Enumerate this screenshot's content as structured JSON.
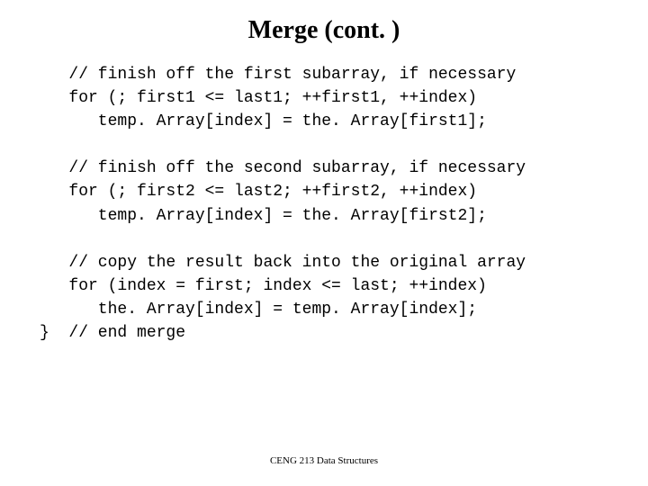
{
  "slide": {
    "title": "Merge (cont. )",
    "code": "   // finish off the first subarray, if necessary\n   for (; first1 <= last1; ++first1, ++index)\n      temp. Array[index] = the. Array[first1];\n\n   // finish off the second subarray, if necessary\n   for (; first2 <= last2; ++first2, ++index)\n      temp. Array[index] = the. Array[first2];\n\n   // copy the result back into the original array\n   for (index = first; index <= last; ++index)\n      the. Array[index] = temp. Array[index];\n}  // end merge",
    "footer": "CENG 213 Data Structures"
  },
  "styles": {
    "background_color": "#ffffff",
    "text_color": "#000000",
    "title_fontsize": 28,
    "title_fontweight": "bold",
    "title_fontfamily": "Times New Roman",
    "code_fontsize": 18,
    "code_fontfamily": "Courier New",
    "code_lineheight": 1.45,
    "footer_fontsize": 11,
    "footer_fontfamily": "Times New Roman",
    "slide_width": 720,
    "slide_height": 540
  }
}
